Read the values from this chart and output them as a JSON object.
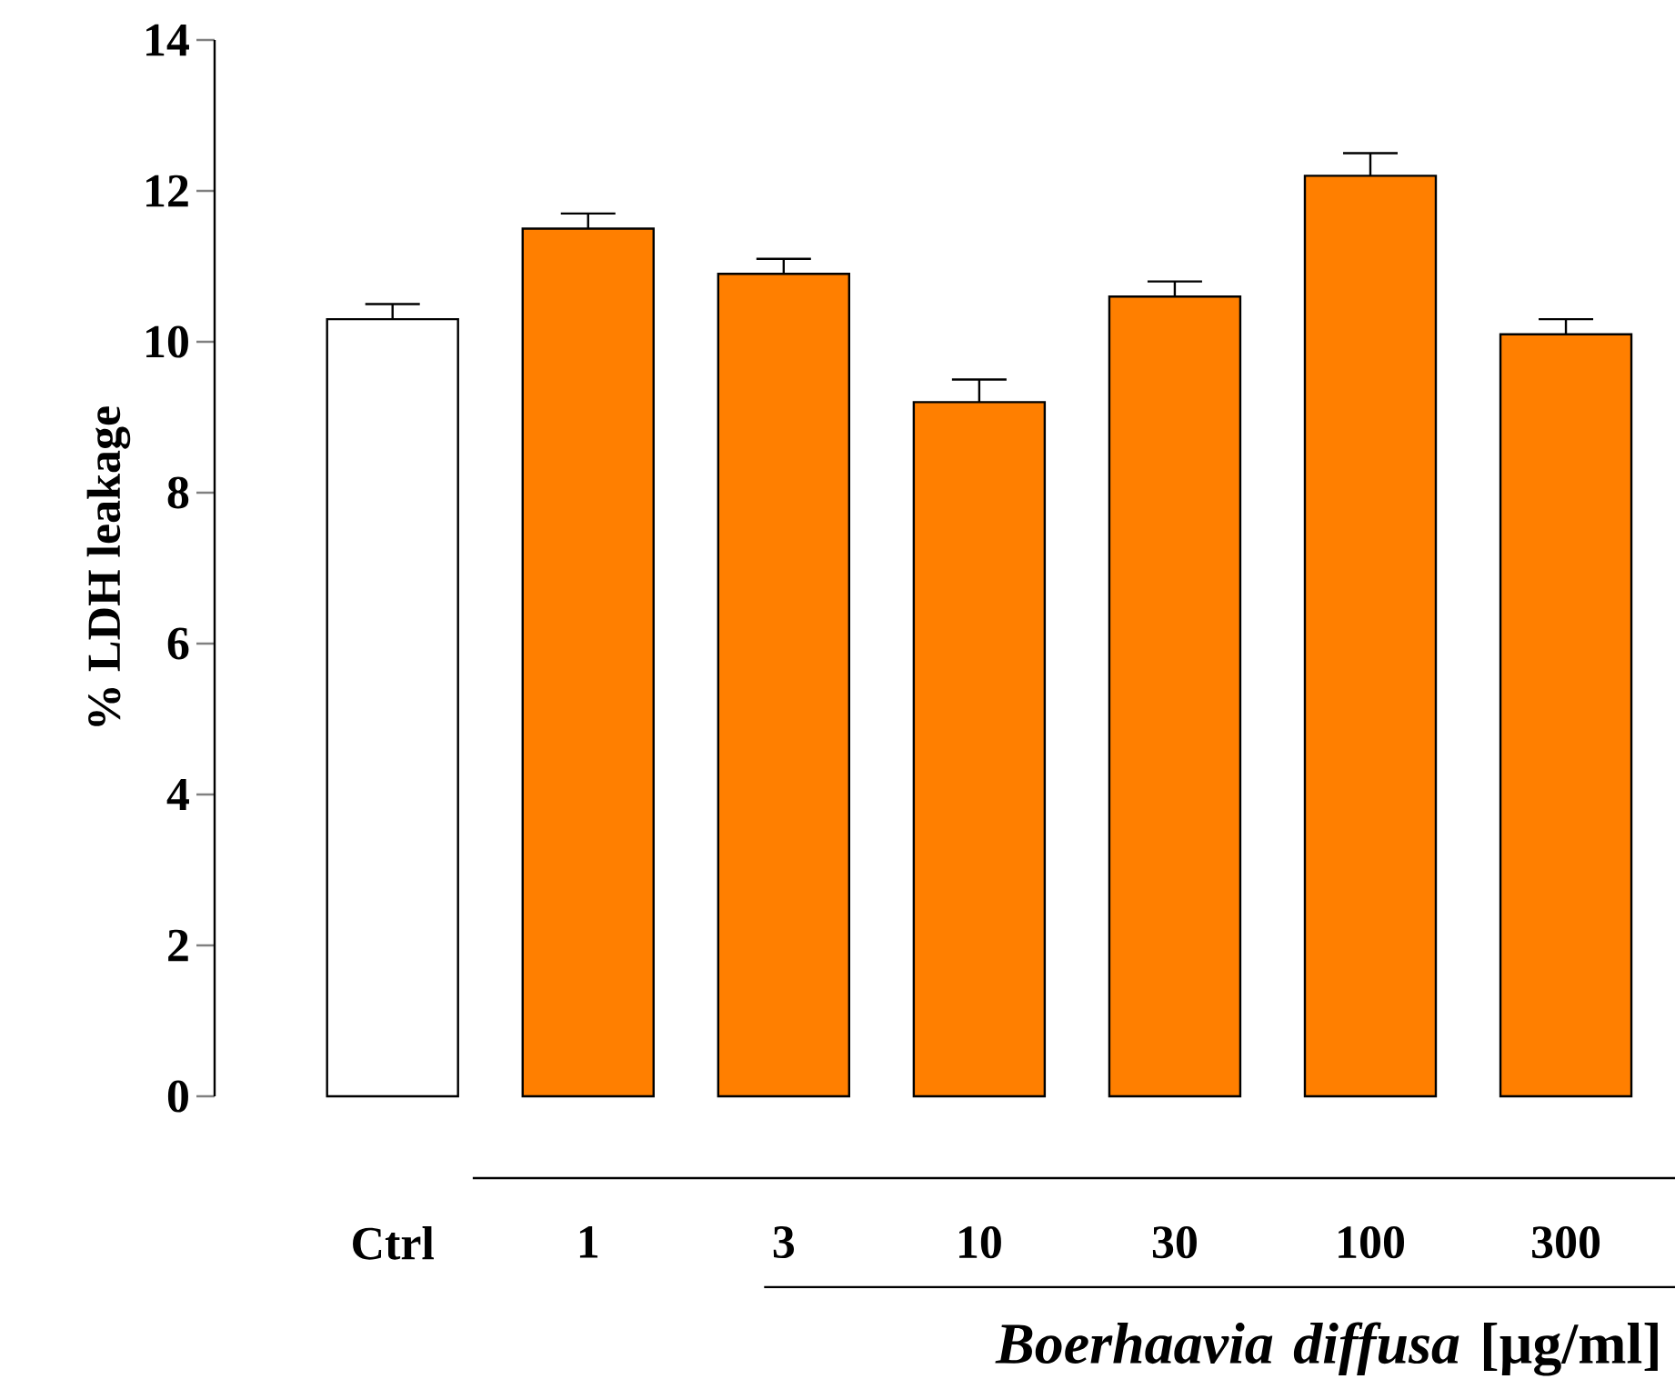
{
  "chart_data": {
    "type": "bar",
    "xlabel": "*Boerhaavia diffusa* [µg/ml]",
    "ylabel": "% LDH leakage",
    "categories": [
      "Ctrl",
      "1",
      "3",
      "10",
      "30",
      "100",
      "300"
    ],
    "values": [
      10.3,
      11.5,
      10.9,
      9.2,
      10.6,
      12.2,
      10.1
    ],
    "errors": [
      0.2,
      0.2,
      0.2,
      0.3,
      0.2,
      0.3,
      0.2
    ],
    "colors": [
      "#ffffff",
      "#ff7f00",
      "#ff7f00",
      "#ff7f00",
      "#ff7f00",
      "#ff7f00",
      "#ff7f00"
    ],
    "ylim": [
      0,
      14
    ],
    "yticks": [
      0,
      2,
      4,
      6,
      8,
      10,
      12,
      14
    ]
  }
}
